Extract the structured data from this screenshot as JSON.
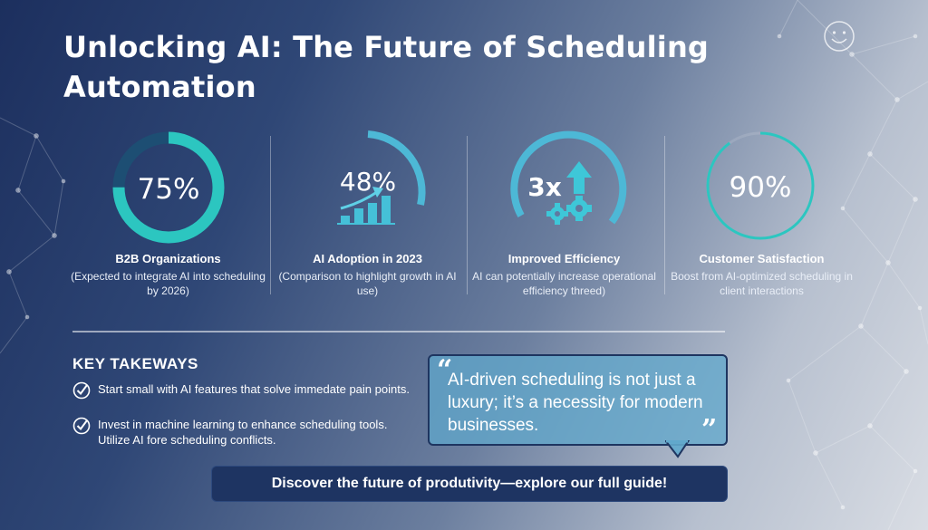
{
  "title": "Unlocking AI: The Future of Scheduling Automation",
  "colors": {
    "accent": "#2cc6c0",
    "ring_track": "#1c4f74",
    "quote_bg": "#5ea8cc",
    "cta_bg": "#1e3462"
  },
  "stats": [
    {
      "value": "75%",
      "label": "B2B Organizations",
      "desc": "(Expected to integrate AI into scheduling by 2026)",
      "level": 0.75,
      "icon": "progress-ring"
    },
    {
      "value": "48%",
      "label": "AI Adoption in 2023",
      "desc": "(Comparison to highlight growth in AI use)",
      "icon": "growth-bar-chart-icon"
    },
    {
      "value": "3x",
      "label": "Improved Efficiency",
      "desc": "AI can potentially increase operational efficiency threed)",
      "icon": "gears-arrow-up-icon"
    },
    {
      "value": "90%",
      "label": "Customer Satisfaction",
      "desc": "Boost from AI-optimized scheduling in client interactions",
      "level": 0.9,
      "icon": "progress-ring"
    }
  ],
  "takeaways": {
    "title": "KEY TAKEWAYS",
    "items": [
      "Start small with AI features that solve immedate pain points.",
      "Invest in machine learning to enhance scheduling tools. Utilize AI fore scheduling conflicts."
    ]
  },
  "quote": {
    "open": "“",
    "text": "AI-driven scheduling is not just a luxury; it’s a necessity for modern businesses.",
    "close": "”"
  },
  "cta": "Discover the future of produtivity—explore our full guide!"
}
